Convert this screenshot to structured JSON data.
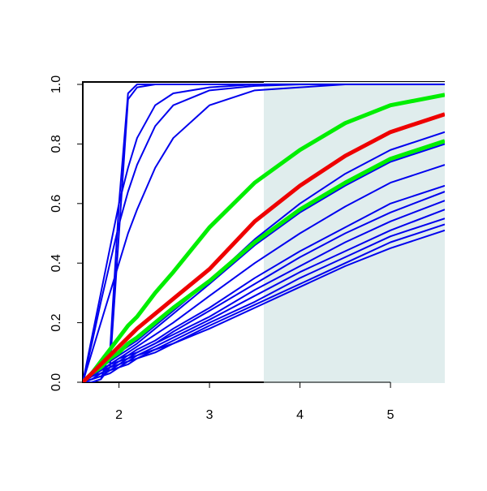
{
  "chart_data": {
    "type": "line",
    "x": [
      1.6,
      1.7,
      1.8,
      1.9,
      2.0,
      2.1,
      2.2,
      2.4,
      2.6,
      3.0,
      3.5,
      4.0,
      4.5,
      5.0,
      5.6
    ],
    "xlim": [
      1.6,
      5.6
    ],
    "ylim": [
      0,
      1
    ],
    "xticks": [
      2,
      3,
      4,
      5
    ],
    "yticks": [
      {
        "value": 0,
        "label": "0.0"
      },
      0.2,
      0.4,
      0.6,
      0.8,
      {
        "value": 1,
        "label": "1.0"
      }
    ],
    "shaded_xlim": [
      3.6,
      5.6
    ],
    "shade_color": "#e0eded",
    "series": [
      {
        "color": "#0000ee",
        "values": [
          0,
          0,
          0.01,
          0.05,
          0.5,
          0.95,
          0.99,
          1,
          1,
          1,
          1,
          1,
          1,
          1,
          1
        ]
      },
      {
        "color": "#0000ee",
        "values": [
          0,
          0,
          0.01,
          0.1,
          0.6,
          0.97,
          1,
          1,
          1,
          1,
          1,
          1,
          1,
          1,
          1
        ]
      },
      {
        "color": "#0000ee",
        "values": [
          0,
          0.15,
          0.3,
          0.45,
          0.6,
          0.72,
          0.82,
          0.93,
          0.97,
          0.99,
          1,
          1,
          1,
          1,
          1
        ]
      },
      {
        "color": "#0000ee",
        "values": [
          0,
          0.13,
          0.27,
          0.4,
          0.53,
          0.64,
          0.73,
          0.86,
          0.93,
          0.98,
          0.995,
          1,
          1,
          1,
          1
        ]
      },
      {
        "color": "#0000ee",
        "values": [
          0,
          0.1,
          0.2,
          0.3,
          0.4,
          0.5,
          0.58,
          0.72,
          0.82,
          0.93,
          0.98,
          0.99,
          1,
          1,
          1
        ]
      },
      {
        "color": "#0000ee",
        "values": [
          0,
          0.03,
          0.05,
          0.08,
          0.1,
          0.12,
          0.14,
          0.19,
          0.24,
          0.34,
          0.48,
          0.6,
          0.7,
          0.78,
          0.84
        ]
      },
      {
        "color": "#0000ee",
        "values": [
          0,
          0.02,
          0.05,
          0.07,
          0.09,
          0.11,
          0.13,
          0.18,
          0.23,
          0.33,
          0.46,
          0.57,
          0.66,
          0.74,
          0.8
        ]
      },
      {
        "color": "#0000ee",
        "values": [
          0,
          0.02,
          0.04,
          0.06,
          0.08,
          0.1,
          0.12,
          0.16,
          0.2,
          0.29,
          0.4,
          0.5,
          0.59,
          0.67,
          0.73
        ]
      },
      {
        "color": "#0000ee",
        "values": [
          0,
          0.02,
          0.04,
          0.06,
          0.08,
          0.09,
          0.11,
          0.14,
          0.18,
          0.25,
          0.35,
          0.44,
          0.52,
          0.6,
          0.66
        ]
      },
      {
        "color": "#0000ee",
        "values": [
          0,
          0.02,
          0.04,
          0.06,
          0.07,
          0.09,
          0.1,
          0.13,
          0.17,
          0.24,
          0.33,
          0.42,
          0.5,
          0.57,
          0.64
        ]
      },
      {
        "color": "#0000ee",
        "values": [
          0,
          0.02,
          0.04,
          0.05,
          0.07,
          0.08,
          0.1,
          0.13,
          0.16,
          0.22,
          0.31,
          0.39,
          0.47,
          0.54,
          0.61
        ]
      },
      {
        "color": "#0000ee",
        "values": [
          0,
          0.02,
          0.03,
          0.05,
          0.06,
          0.08,
          0.09,
          0.12,
          0.15,
          0.21,
          0.29,
          0.37,
          0.44,
          0.51,
          0.58
        ]
      },
      {
        "color": "#0000ee",
        "values": [
          0,
          0.01,
          0.03,
          0.04,
          0.06,
          0.07,
          0.09,
          0.11,
          0.14,
          0.2,
          0.27,
          0.35,
          0.42,
          0.49,
          0.55
        ]
      },
      {
        "color": "#0000ee",
        "values": [
          0,
          0.01,
          0.02,
          0.04,
          0.05,
          0.07,
          0.08,
          0.11,
          0.13,
          0.19,
          0.26,
          0.33,
          0.4,
          0.47,
          0.53
        ]
      },
      {
        "color": "#0000ee",
        "values": [
          0,
          0.01,
          0.02,
          0.03,
          0.05,
          0.06,
          0.08,
          0.1,
          0.13,
          0.18,
          0.25,
          0.32,
          0.39,
          0.45,
          0.51
        ]
      },
      {
        "color": "#00ee00",
        "values": [
          0,
          0.03,
          0.07,
          0.11,
          0.15,
          0.19,
          0.22,
          0.3,
          0.37,
          0.52,
          0.67,
          0.78,
          0.87,
          0.93,
          0.965
        ]
      },
      {
        "color": "#00ee00",
        "values": [
          0,
          0.03,
          0.05,
          0.08,
          0.1,
          0.13,
          0.15,
          0.2,
          0.25,
          0.34,
          0.47,
          0.58,
          0.67,
          0.75,
          0.81
        ]
      },
      {
        "color": "#ee0000",
        "values": [
          0,
          0.03,
          0.06,
          0.09,
          0.12,
          0.15,
          0.18,
          0.23,
          0.28,
          0.38,
          0.54,
          0.66,
          0.76,
          0.84,
          0.9
        ]
      }
    ]
  }
}
